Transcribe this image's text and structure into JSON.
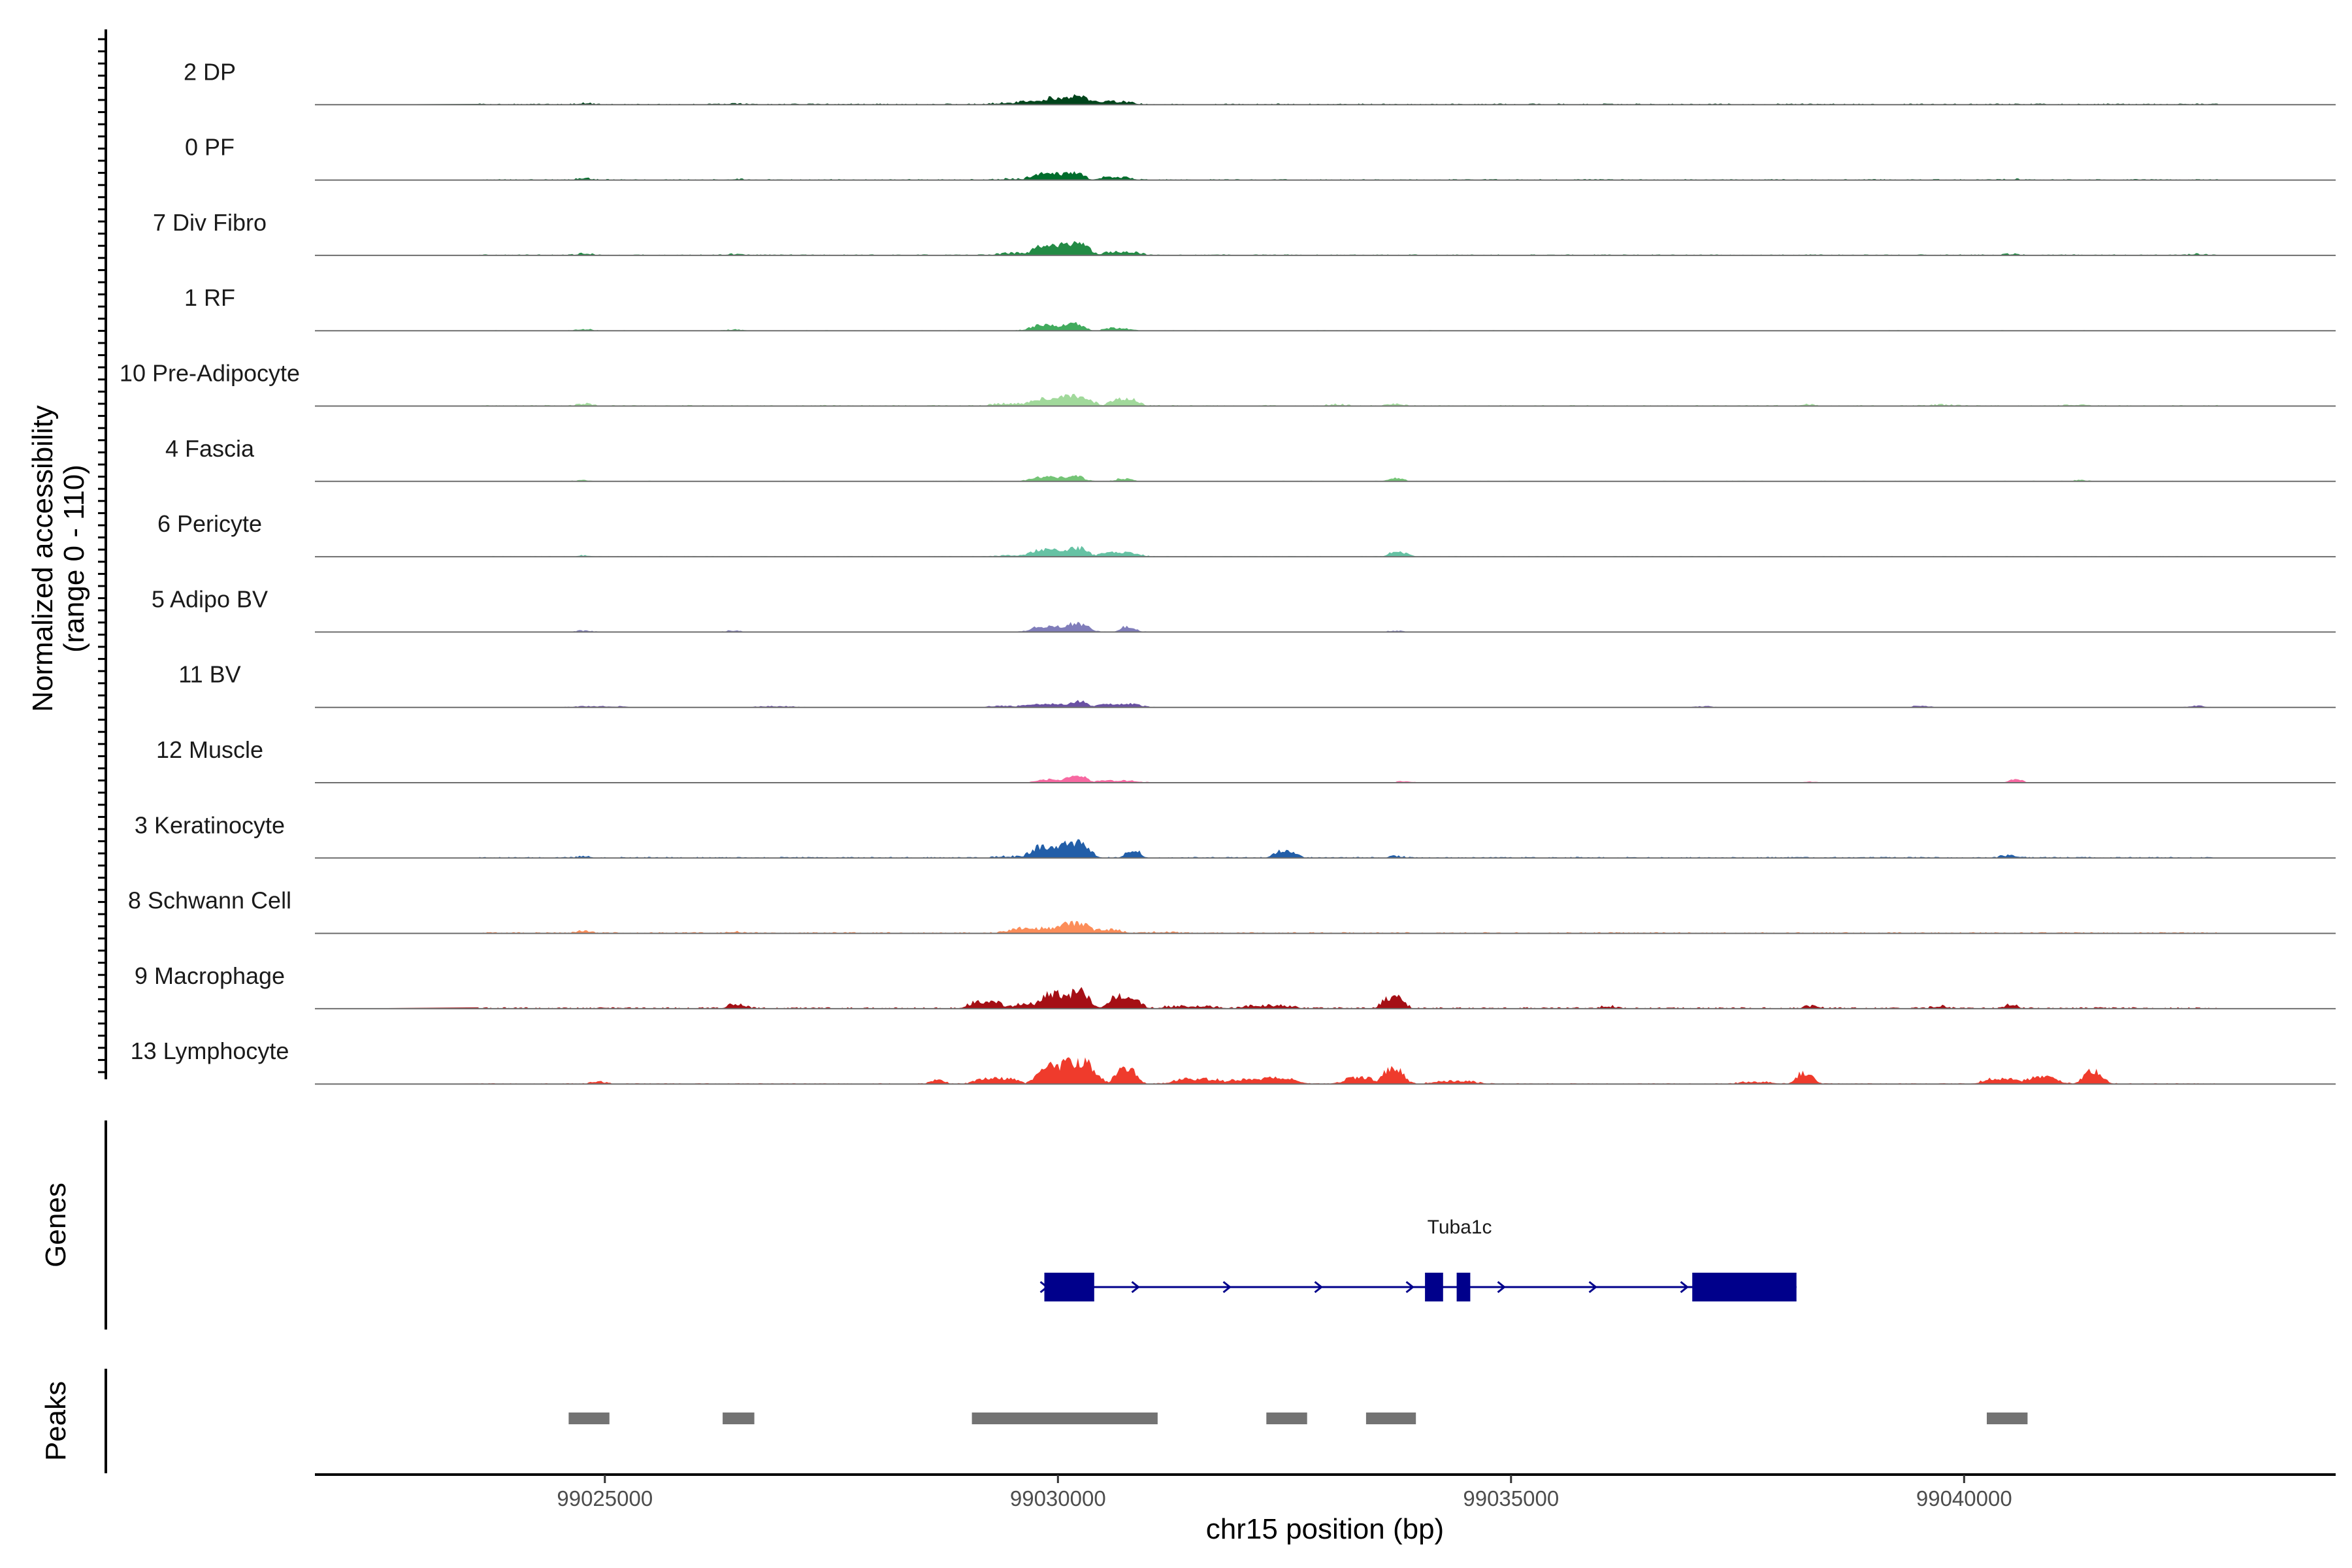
{
  "chart_data": {
    "type": "area",
    "title": "",
    "ylabel_line1": "Normalized accessibility",
    "ylabel_line2": "(range 0 - 110)",
    "xlabel": "chr15 position (bp)",
    "xlim": [
      99021800,
      99044100
    ],
    "ylim": [
      0,
      110
    ],
    "x_ticks": [
      99025000,
      99030000,
      99035000,
      99040000
    ],
    "tracks": [
      {
        "name": "2 DP",
        "color": "#00441b",
        "baseline": 1.2,
        "peaks": [
          [
            99029950,
            99030250,
            10,
            120
          ],
          [
            99030160,
            99030240,
            14,
            50
          ],
          [
            99029700,
            99030050,
            6,
            130
          ],
          [
            99030500,
            99030700,
            4,
            120
          ],
          [
            99029400,
            99029700,
            2,
            150
          ],
          [
            99024750,
            99024800,
            2,
            60
          ],
          [
            99026400,
            99026450,
            1.2,
            60
          ]
        ]
      },
      {
        "name": "0 PF",
        "color": "#006d2c",
        "baseline": 1.0,
        "peaks": [
          [
            99029800,
            99030050,
            9,
            100
          ],
          [
            99030150,
            99030200,
            11,
            80
          ],
          [
            99030550,
            99030700,
            4,
            100
          ],
          [
            99029500,
            99029700,
            1.5,
            150
          ],
          [
            99024750,
            99024800,
            2,
            60
          ],
          [
            99026400,
            99026450,
            1.2,
            60
          ],
          [
            99040500,
            99040550,
            1,
            60
          ]
        ]
      },
      {
        "name": "7 Div Fibro",
        "color": "#238b45",
        "baseline": 1.0,
        "peaks": [
          [
            99029850,
            99030100,
            16,
            110
          ],
          [
            99030150,
            99030250,
            18,
            90
          ],
          [
            99030600,
            99030800,
            5,
            100
          ],
          [
            99029500,
            99029750,
            3,
            150
          ],
          [
            99024750,
            99024800,
            2.5,
            60
          ],
          [
            99026400,
            99026450,
            1.5,
            60
          ],
          [
            99040500,
            99040550,
            1.5,
            60
          ],
          [
            99042550,
            99042600,
            1.5,
            60
          ]
        ]
      },
      {
        "name": "1 RF",
        "color": "#41ab5d",
        "baseline": 0.5,
        "peaks": [
          [
            99029800,
            99029950,
            8,
            100
          ],
          [
            99030120,
            99030200,
            11,
            80
          ],
          [
            99030600,
            99030700,
            4,
            80
          ],
          [
            99024750,
            99024800,
            2,
            60
          ],
          [
            99026400,
            99026450,
            1.5,
            60
          ]
        ]
      },
      {
        "name": "10 Pre-Adipocyte",
        "color": "#a1d99b",
        "baseline": 1.0,
        "peaks": [
          [
            99029800,
            99030000,
            10,
            110
          ],
          [
            99030100,
            99030250,
            15,
            110
          ],
          [
            99030650,
            99030800,
            10,
            80
          ],
          [
            99029400,
            99029600,
            3,
            130
          ],
          [
            99024750,
            99024800,
            3,
            60
          ],
          [
            99033700,
            99033750,
            3,
            60
          ],
          [
            99033050,
            99033100,
            2,
            80
          ],
          [
            99038250,
            99038300,
            2,
            60
          ],
          [
            99039700,
            99039800,
            1.5,
            100
          ],
          [
            99041200,
            99041250,
            1.5,
            80
          ]
        ]
      },
      {
        "name": "4 Fascia",
        "color": "#74c476",
        "baseline": 0.6,
        "peaks": [
          [
            99029800,
            99030000,
            6,
            100
          ],
          [
            99030150,
            99030200,
            8,
            80
          ],
          [
            99030700,
            99030750,
            4,
            60
          ],
          [
            99033700,
            99033750,
            5,
            60
          ],
          [
            99024750,
            99024800,
            1.5,
            60
          ],
          [
            99041250,
            99041300,
            1.5,
            60
          ]
        ]
      },
      {
        "name": "6 Pericyte",
        "color": "#66c2a4",
        "baseline": 0.6,
        "peaks": [
          [
            99029800,
            99030000,
            10,
            100
          ],
          [
            99030150,
            99030250,
            13,
            80
          ],
          [
            99030550,
            99030800,
            6,
            100
          ],
          [
            99033700,
            99033800,
            6,
            60
          ],
          [
            99029450,
            99029600,
            2,
            100
          ],
          [
            99024750,
            99024800,
            1.5,
            60
          ]
        ]
      },
      {
        "name": "5 Adipo BV",
        "color": "#807dba",
        "baseline": 0.5,
        "peaks": [
          [
            99029800,
            99030000,
            8,
            100
          ],
          [
            99030150,
            99030250,
            12,
            90
          ],
          [
            99030750,
            99030800,
            8,
            60
          ],
          [
            99024750,
            99024800,
            2,
            60
          ],
          [
            99026400,
            99026450,
            2,
            60
          ],
          [
            99033700,
            99033750,
            1.5,
            60
          ]
        ]
      },
      {
        "name": "11 BV",
        "color": "#6a51a3",
        "baseline": 0.4,
        "peaks": [
          [
            99029700,
            99030000,
            5,
            110
          ],
          [
            99030200,
            99030250,
            9,
            70
          ],
          [
            99030550,
            99030800,
            5,
            110
          ],
          [
            99029300,
            99029450,
            2,
            80
          ],
          [
            99039500,
            99039550,
            2.5,
            60
          ],
          [
            99042550,
            99042600,
            2,
            60
          ],
          [
            99024750,
            99025100,
            1.5,
            100
          ],
          [
            99026750,
            99027000,
            1.5,
            100
          ],
          [
            99037100,
            99037150,
            1.5,
            60
          ]
        ]
      },
      {
        "name": "12 Muscle",
        "color": "#f768a1",
        "baseline": 0.3,
        "peaks": [
          [
            99029850,
            99030050,
            5,
            100
          ],
          [
            99030150,
            99030250,
            10,
            70
          ],
          [
            99030500,
            99030800,
            3,
            110
          ],
          [
            99040550,
            99040600,
            5,
            50
          ],
          [
            99033800,
            99033850,
            2,
            60
          ],
          [
            99038300,
            99038350,
            1.5,
            60
          ]
        ]
      },
      {
        "name": "3 Keratinocyte",
        "color": "#225ea8",
        "baseline": 1.2,
        "peaks": [
          [
            99029800,
            99029950,
            16,
            100
          ],
          [
            99030100,
            99030250,
            22,
            90
          ],
          [
            99030800,
            99030850,
            11,
            60
          ],
          [
            99032450,
            99032550,
            10,
            70
          ],
          [
            99029400,
            99029600,
            2,
            120
          ],
          [
            99024750,
            99024800,
            2,
            60
          ],
          [
            99040450,
            99040550,
            3,
            60
          ],
          [
            99033700,
            99033750,
            2,
            60
          ]
        ]
      },
      {
        "name": "8 Schwann Cell",
        "color": "#fc8d59",
        "baseline": 1.2,
        "peaks": [
          [
            99029600,
            99029950,
            7,
            130
          ],
          [
            99030100,
            99030250,
            14,
            100
          ],
          [
            99030450,
            99030600,
            5,
            100
          ],
          [
            99024750,
            99024800,
            3,
            60
          ],
          [
            99026400,
            99026450,
            2,
            60
          ],
          [
            99031100,
            99031200,
            1.5,
            80
          ]
        ]
      },
      {
        "name": "9 Macrophage",
        "color": "#a50f15",
        "baseline": 1.5,
        "peaks": [
          [
            99029900,
            99030000,
            22,
            90
          ],
          [
            99030200,
            99030250,
            25,
            90
          ],
          [
            99030650,
            99030800,
            18,
            90
          ],
          [
            99029100,
            99029300,
            9,
            90
          ],
          [
            99029600,
            99029700,
            7,
            90
          ],
          [
            99033650,
            99033750,
            16,
            70
          ],
          [
            99032200,
            99032450,
            4,
            140
          ],
          [
            99026400,
            99026500,
            5,
            60
          ],
          [
            99040500,
            99040550,
            5,
            50
          ],
          [
            99031300,
            99031600,
            3,
            150
          ],
          [
            99036050,
            99036100,
            3,
            60
          ],
          [
            99038300,
            99038350,
            3,
            60
          ],
          [
            99039700,
            99039750,
            3,
            60
          ]
        ]
      },
      {
        "name": "13 Lymphocyte",
        "color": "#ef3b2c",
        "baseline": 0.8,
        "peaks": [
          [
            99029850,
            99029950,
            30,
            80
          ],
          [
            99030100,
            99030300,
            32,
            110
          ],
          [
            99030700,
            99030800,
            22,
            70
          ],
          [
            99033650,
            99033750,
            22,
            70
          ],
          [
            99038200,
            99038300,
            16,
            50
          ],
          [
            99041400,
            99041450,
            19,
            80
          ],
          [
            99040800,
            99040900,
            10,
            120
          ],
          [
            99029200,
            99029450,
            8,
            100
          ],
          [
            99031400,
            99031700,
            7,
            120
          ],
          [
            99032300,
            99032500,
            9,
            100
          ],
          [
            99033250,
            99033400,
            9,
            90
          ],
          [
            99031950,
            99032150,
            6,
            100
          ],
          [
            99028650,
            99028700,
            5,
            60
          ],
          [
            99024900,
            99024950,
            3,
            60
          ],
          [
            99040300,
            99040500,
            7,
            100
          ],
          [
            99034250,
            99034500,
            4,
            120
          ],
          [
            99037600,
            99037800,
            2.5,
            100
          ]
        ]
      }
    ],
    "genes_label": "Genes",
    "gene": {
      "name": "Tuba1c",
      "strand": "+",
      "start": 99029850,
      "end": 99038150,
      "exons": [
        [
          99029850,
          99030400
        ],
        [
          99034050,
          99034250
        ],
        [
          99034400,
          99034550
        ],
        [
          99037000,
          99038150
        ]
      ]
    },
    "peaks_label": "Peaks",
    "peak_regions": [
      [
        99024600,
        99025050
      ],
      [
        99026300,
        99026650
      ],
      [
        99029050,
        99031100
      ],
      [
        99032300,
        99032750
      ],
      [
        99033400,
        99033950
      ],
      [
        99040250,
        99040700
      ]
    ],
    "colors": {
      "gene": "#00008b",
      "peak": "#737373",
      "baseline": "#6e6e6e"
    }
  }
}
